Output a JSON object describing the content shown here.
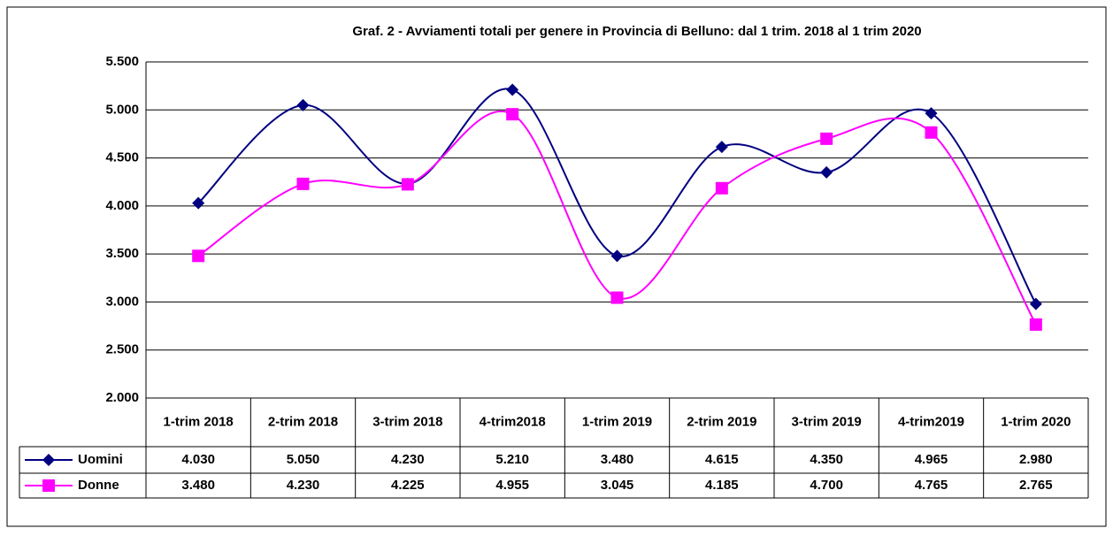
{
  "chart_data": {
    "type": "line",
    "title": "Graf. 2 - Avviamenti totali per genere in Provincia di Belluno: dal 1 trim. 2018 al 1 trim 2020",
    "categories": [
      "1-trim 2018",
      "2-trim 2018",
      "3-trim 2018",
      "4-trim2018",
      "1-trim 2019",
      "2-trim 2019",
      "3-trim 2019",
      "4-trim2019",
      "1-trim 2020"
    ],
    "series": [
      {
        "name": "Uomini",
        "color": "#000080",
        "marker": "diamond",
        "values": [
          4030,
          5050,
          4230,
          5210,
          3480,
          4615,
          4350,
          4965,
          2980
        ],
        "value_labels": [
          "4.030",
          "5.050",
          "4.230",
          "5.210",
          "3.480",
          "4.615",
          "4.350",
          "4.965",
          "2.980"
        ]
      },
      {
        "name": "Donne",
        "color": "#ff00ff",
        "marker": "square",
        "values": [
          3480,
          4230,
          4225,
          4955,
          3045,
          4185,
          4700,
          4765,
          2765
        ],
        "value_labels": [
          "3.480",
          "4.230",
          "4.225",
          "4.955",
          "3.045",
          "4.185",
          "4.700",
          "4.765",
          "2.765"
        ]
      }
    ],
    "ylim": [
      2000,
      5500
    ],
    "yticks": [
      {
        "value": 2000,
        "label": "2.000"
      },
      {
        "value": 2500,
        "label": "2.500"
      },
      {
        "value": 3000,
        "label": "3.000"
      },
      {
        "value": 3500,
        "label": "3.500"
      },
      {
        "value": 4000,
        "label": "4.000"
      },
      {
        "value": 4500,
        "label": "4.500"
      },
      {
        "value": 5000,
        "label": "5.000"
      },
      {
        "value": 5500,
        "label": "5.500"
      }
    ],
    "grid": true,
    "smooth": true
  }
}
